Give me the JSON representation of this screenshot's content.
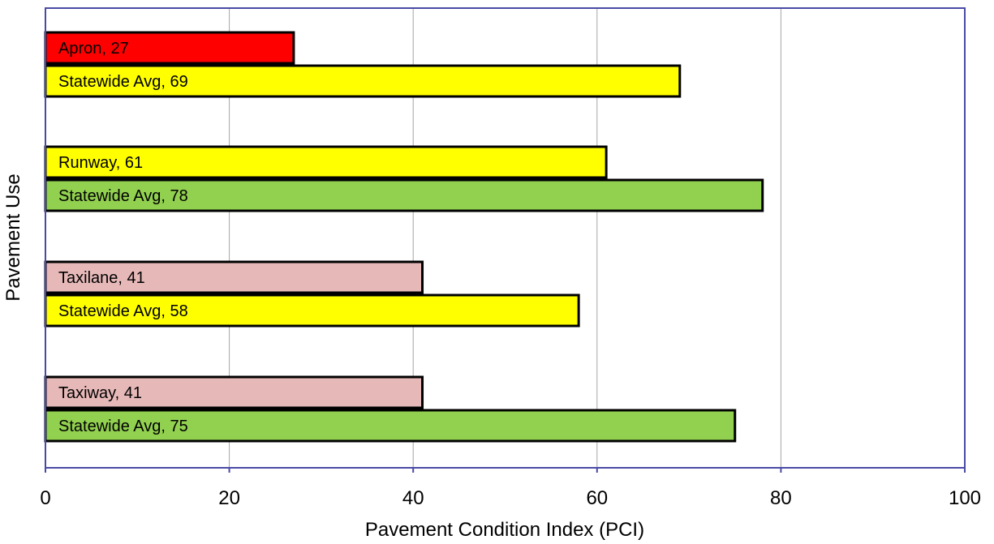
{
  "chart_data": {
    "type": "bar",
    "orientation": "horizontal",
    "xlabel": "Pavement Condition Index (PCI)",
    "ylabel": "Pavement Use",
    "xlim": [
      0,
      100
    ],
    "xticks": [
      0,
      20,
      40,
      60,
      80,
      100
    ],
    "grid": true,
    "groups": [
      {
        "bars": [
          {
            "label": "Apron, 27",
            "value": 27,
            "color": "#ff0000"
          },
          {
            "label": "Statewide Avg, 69",
            "value": 69,
            "color": "#ffff00"
          }
        ]
      },
      {
        "bars": [
          {
            "label": "Runway, 61",
            "value": 61,
            "color": "#ffff00"
          },
          {
            "label": "Statewide Avg, 78",
            "value": 78,
            "color": "#92d050"
          }
        ]
      },
      {
        "bars": [
          {
            "label": "Taxilane, 41",
            "value": 41,
            "color": "#e6b9b8"
          },
          {
            "label": "Statewide Avg, 58",
            "value": 58,
            "color": "#ffff00"
          }
        ]
      },
      {
        "bars": [
          {
            "label": "Taxiway, 41",
            "value": 41,
            "color": "#e6b9b8"
          },
          {
            "label": "Statewide Avg, 75",
            "value": 75,
            "color": "#92d050"
          }
        ]
      }
    ]
  },
  "colors": {
    "plot_border": "#4a4aa6",
    "gridline": "#a6a6a6",
    "bar_outline": "#000000"
  }
}
